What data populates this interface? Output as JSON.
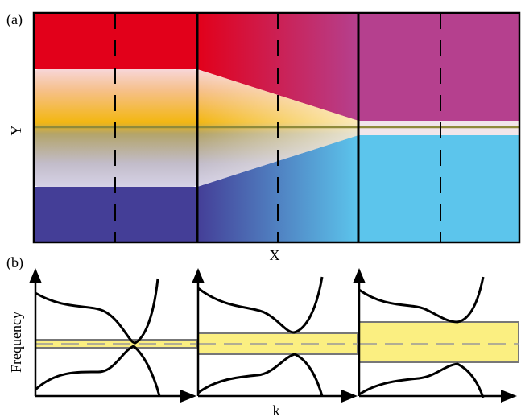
{
  "panel_a": {
    "label": "(a)",
    "x_label": "X",
    "y_label": "Y",
    "colors": {
      "top_red": "#e2001a",
      "top_magenta": "#b5408e",
      "bottom_blue": "#443e97",
      "bottom_cyan": "#5cc5ec",
      "center_band": "#f3b712",
      "axis_line": "#8f8a3a"
    }
  },
  "panel_b": {
    "label": "(b)",
    "x_label": "k",
    "y_label": "Frequency",
    "colors": {
      "band_fill": "#fbef81",
      "band_stroke": "#777777",
      "dashed_line": "#999999",
      "curve": "#000000"
    },
    "subplots": [
      {
        "band_gap": "narrow"
      },
      {
        "band_gap": "medium"
      },
      {
        "band_gap": "wide"
      }
    ]
  }
}
